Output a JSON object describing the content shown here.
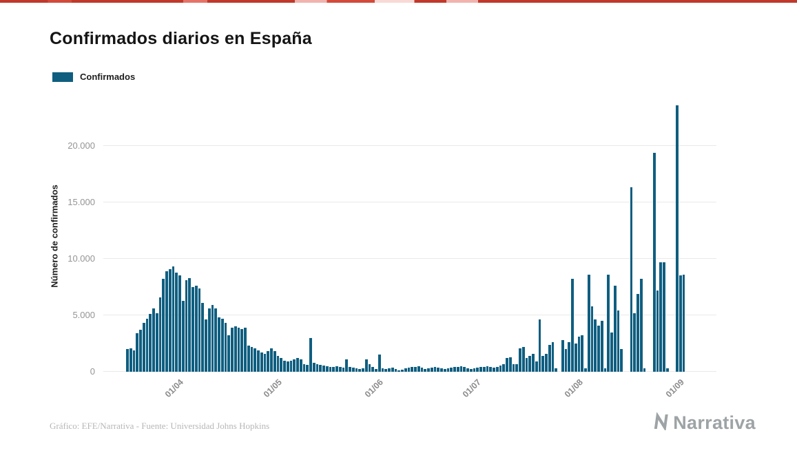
{
  "page": {
    "title": "Confirmados diarios en España",
    "legend": {
      "label": "Confirmados"
    },
    "y_axis_title": "Número de confirmados",
    "footer_credit": "Gráfico: EFE/Narrativa - Fuente: Universidad Johns Hopkins",
    "brand": "Narrativa"
  },
  "colors": {
    "bar": "#0f5e80",
    "grid": "#e9e9e9",
    "axis_text": "#949494",
    "title_text": "#151515",
    "footer_text": "#b7b7b7",
    "brand_text": "#9ea3a6",
    "top_strip_red": "#c0392b"
  },
  "chart_data": {
    "type": "bar",
    "title": "Confirmados diarios en España",
    "xlabel": "",
    "ylabel": "Número de confirmados",
    "legend": [
      "Confirmados"
    ],
    "legend_position": "top-left",
    "grid": "horizontal",
    "ylim": [
      0,
      24000
    ],
    "yticks": [
      0,
      5000,
      10000,
      15000,
      20000
    ],
    "ytick_labels": [
      "0",
      "5.000",
      "10.000",
      "15.000",
      "20.000"
    ],
    "xticks": [
      {
        "label": "01/04",
        "day_index": 16
      },
      {
        "label": "01/05",
        "day_index": 46
      },
      {
        "label": "01/06",
        "day_index": 77
      },
      {
        "label": "01/07",
        "day_index": 107
      },
      {
        "label": "01/08",
        "day_index": 138
      },
      {
        "label": "01/09",
        "day_index": 169
      }
    ],
    "dates": [
      "16/03",
      "17/03",
      "18/03",
      "19/03",
      "20/03",
      "21/03",
      "22/03",
      "23/03",
      "24/03",
      "25/03",
      "26/03",
      "27/03",
      "28/03",
      "29/03",
      "30/03",
      "31/03",
      "01/04",
      "02/04",
      "03/04",
      "04/04",
      "05/04",
      "06/04",
      "07/04",
      "08/04",
      "09/04",
      "10/04",
      "11/04",
      "12/04",
      "13/04",
      "14/04",
      "15/04",
      "16/04",
      "17/04",
      "18/04",
      "19/04",
      "20/04",
      "21/04",
      "22/04",
      "23/04",
      "24/04",
      "25/04",
      "26/04",
      "27/04",
      "28/04",
      "29/04",
      "30/04",
      "01/05",
      "02/05",
      "03/05",
      "04/05",
      "05/05",
      "06/05",
      "07/05",
      "08/05",
      "09/05",
      "10/05",
      "11/05",
      "12/05",
      "13/05",
      "14/05",
      "15/05",
      "16/05",
      "17/05",
      "18/05",
      "19/05",
      "20/05",
      "21/05",
      "22/05",
      "23/05",
      "24/05",
      "25/05",
      "26/05",
      "27/05",
      "28/05",
      "29/05",
      "30/05",
      "31/05",
      "01/06",
      "02/06",
      "03/06",
      "04/06",
      "05/06",
      "06/06",
      "07/06",
      "08/06",
      "09/06",
      "10/06",
      "11/06",
      "12/06",
      "13/06",
      "14/06",
      "15/06",
      "16/06",
      "17/06",
      "18/06",
      "19/06",
      "20/06",
      "21/06",
      "22/06",
      "23/06",
      "24/06",
      "25/06",
      "26/06",
      "27/06",
      "28/06",
      "29/06",
      "30/06",
      "01/07",
      "02/07",
      "03/07",
      "04/07",
      "05/07",
      "06/07",
      "07/07",
      "08/07",
      "09/07",
      "10/07",
      "11/07",
      "12/07",
      "13/07",
      "14/07",
      "15/07",
      "16/07",
      "17/07",
      "18/07",
      "19/07",
      "20/07",
      "21/07",
      "22/07",
      "23/07",
      "24/07",
      "25/07",
      "26/07",
      "27/07",
      "28/07",
      "29/07",
      "30/07",
      "31/07",
      "01/08",
      "02/08",
      "03/08",
      "04/08",
      "05/08",
      "06/08",
      "07/08",
      "08/08",
      "09/08",
      "10/08",
      "11/08",
      "12/08",
      "13/08",
      "14/08",
      "15/08",
      "16/08",
      "17/08",
      "18/08",
      "19/08",
      "20/08",
      "21/08",
      "22/08",
      "23/08",
      "24/08",
      "25/08",
      "26/08",
      "27/08",
      "28/08",
      "29/08",
      "30/08",
      "31/08",
      "01/09",
      "02/09"
    ],
    "values": [
      2000,
      2100,
      1900,
      3400,
      3700,
      4300,
      4700,
      5100,
      5600,
      5200,
      6600,
      8200,
      8900,
      9100,
      9300,
      8800,
      8500,
      6300,
      8100,
      8300,
      7500,
      7600,
      7400,
      6100,
      4600,
      5600,
      5900,
      5600,
      4800,
      4700,
      4300,
      3200,
      3900,
      4000,
      3900,
      3800,
      3900,
      2300,
      2200,
      2100,
      1900,
      1700,
      1600,
      1800,
      2100,
      1800,
      1400,
      1200,
      1000,
      900,
      1000,
      1100,
      1200,
      1100,
      700,
      600,
      3000,
      800,
      700,
      600,
      550,
      500,
      400,
      450,
      500,
      400,
      350,
      1100,
      450,
      350,
      300,
      250,
      300,
      1100,
      650,
      400,
      250,
      1500,
      300,
      250,
      300,
      350,
      250,
      150,
      200,
      300,
      350,
      400,
      450,
      500,
      350,
      250,
      300,
      350,
      400,
      350,
      300,
      250,
      300,
      350,
      400,
      450,
      500,
      400,
      300,
      250,
      300,
      350,
      400,
      450,
      500,
      400,
      350,
      450,
      550,
      650,
      1200,
      1300,
      700,
      650,
      2100,
      2200,
      1200,
      1400,
      1600,
      900,
      4600,
      1400,
      1600,
      2400,
      2600,
      300,
      0,
      2800,
      2000,
      2600,
      8200,
      2500,
      3100,
      3200,
      300,
      8600,
      5800,
      4600,
      4100,
      4500,
      300,
      8600,
      3500,
      7600,
      5400,
      2000,
      0,
      0,
      16300,
      5200,
      6900,
      8200,
      300,
      0,
      0,
      19400,
      7200,
      9700,
      9700,
      300,
      0,
      0,
      23600,
      8500,
      8600
    ]
  }
}
